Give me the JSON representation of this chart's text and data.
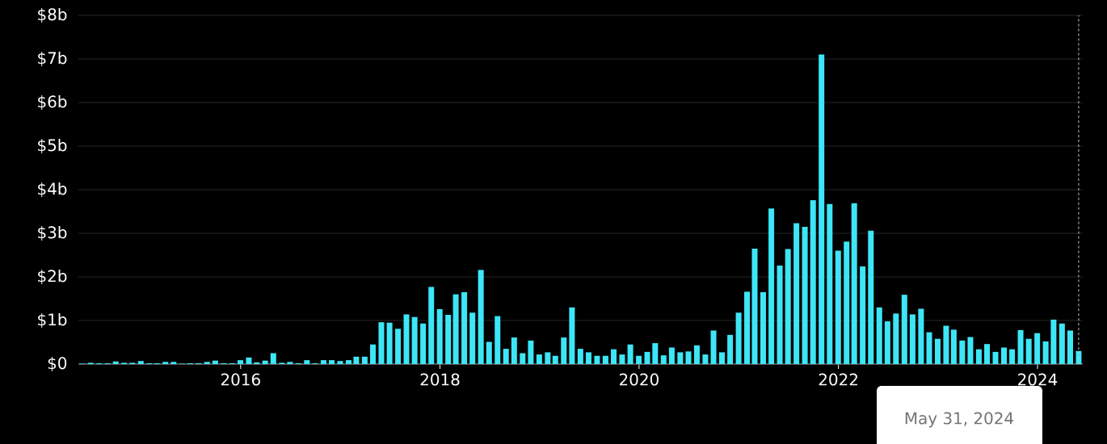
{
  "chart_data": {
    "type": "bar",
    "x": [
      "2014-05-31",
      "2014-06-30",
      "2014-07-31",
      "2014-08-31",
      "2014-09-30",
      "2014-10-31",
      "2014-11-30",
      "2014-12-31",
      "2015-01-31",
      "2015-02-28",
      "2015-03-31",
      "2015-04-30",
      "2015-05-31",
      "2015-06-30",
      "2015-07-31",
      "2015-08-31",
      "2015-09-30",
      "2015-10-31",
      "2015-11-30",
      "2015-12-31",
      "2016-01-31",
      "2016-02-29",
      "2016-03-31",
      "2016-04-30",
      "2016-05-31",
      "2016-06-30",
      "2016-07-31",
      "2016-08-31",
      "2016-09-30",
      "2016-10-31",
      "2016-11-30",
      "2016-12-31",
      "2017-01-31",
      "2017-02-28",
      "2017-03-31",
      "2017-04-30",
      "2017-05-31",
      "2017-06-30",
      "2017-07-31",
      "2017-08-31",
      "2017-09-30",
      "2017-10-31",
      "2017-11-30",
      "2017-12-31",
      "2018-01-31",
      "2018-02-28",
      "2018-03-31",
      "2018-04-30",
      "2018-05-31",
      "2018-06-30",
      "2018-07-31",
      "2018-08-31",
      "2018-09-30",
      "2018-10-31",
      "2018-11-30",
      "2018-12-31",
      "2019-01-31",
      "2019-02-28",
      "2019-03-31",
      "2019-04-30",
      "2019-05-31",
      "2019-06-30",
      "2019-07-31",
      "2019-08-31",
      "2019-09-30",
      "2019-10-31",
      "2019-11-30",
      "2019-12-31",
      "2020-01-31",
      "2020-02-29",
      "2020-03-31",
      "2020-04-30",
      "2020-05-31",
      "2020-06-30",
      "2020-07-31",
      "2020-08-31",
      "2020-09-30",
      "2020-10-31",
      "2020-11-30",
      "2020-12-31",
      "2021-01-31",
      "2021-02-28",
      "2021-03-31",
      "2021-04-30",
      "2021-05-31",
      "2021-06-30",
      "2021-07-31",
      "2021-08-31",
      "2021-09-30",
      "2021-10-31",
      "2021-11-30",
      "2021-12-31",
      "2022-01-31",
      "2022-02-28",
      "2022-03-31",
      "2022-04-30",
      "2022-05-31",
      "2022-06-30",
      "2022-07-31",
      "2022-08-31",
      "2022-09-30",
      "2022-10-31",
      "2022-11-30",
      "2022-12-31",
      "2023-01-31",
      "2023-02-28",
      "2023-03-31",
      "2023-04-30",
      "2023-05-31",
      "2023-06-30",
      "2023-07-31",
      "2023-08-31",
      "2023-09-30",
      "2023-10-31",
      "2023-11-30",
      "2023-12-31",
      "2024-01-31",
      "2024-02-29",
      "2024-03-31",
      "2024-04-30",
      "2024-05-31"
    ],
    "values": [
      0.01,
      0.03,
      0.02,
      0.02,
      0.06,
      0.03,
      0.03,
      0.07,
      0.02,
      0.02,
      0.05,
      0.05,
      0.01,
      0.02,
      0.02,
      0.05,
      0.08,
      0.02,
      0.02,
      0.09,
      0.15,
      0.04,
      0.08,
      0.25,
      0.03,
      0.05,
      0.02,
      0.09,
      0.02,
      0.09,
      0.09,
      0.07,
      0.09,
      0.17,
      0.17,
      0.45,
      0.96,
      0.95,
      0.81,
      1.14,
      1.08,
      0.93,
      1.77,
      1.26,
      1.13,
      1.6,
      1.65,
      1.18,
      2.16,
      0.51,
      1.1,
      0.35,
      0.61,
      0.25,
      0.54,
      0.22,
      0.27,
      0.19,
      0.61,
      1.3,
      0.35,
      0.27,
      0.19,
      0.19,
      0.34,
      0.22,
      0.45,
      0.19,
      0.28,
      0.48,
      0.2,
      0.38,
      0.27,
      0.29,
      0.43,
      0.22,
      0.77,
      0.27,
      0.67,
      1.18,
      1.66,
      2.65,
      1.65,
      3.57,
      2.26,
      2.64,
      3.23,
      3.15,
      3.76,
      7.1,
      3.67,
      2.6,
      2.81,
      3.69,
      2.24,
      3.06,
      1.3,
      0.98,
      1.16,
      1.59,
      1.14,
      1.27,
      0.73,
      0.58,
      0.88,
      0.79,
      0.54,
      0.62,
      0.34,
      0.46,
      0.28,
      0.38,
      0.34,
      0.78,
      0.58,
      0.71,
      0.52,
      1.02,
      0.93,
      0.77,
      0.3
    ],
    "color": "#3de6f6",
    "xlim": [
      "2014-05-16",
      "2024-06-15"
    ],
    "ylim": [
      0,
      8
    ],
    "xticks": [
      {
        "value": "2016-01-01",
        "label": "2016"
      },
      {
        "value": "2018-01-01",
        "label": "2018"
      },
      {
        "value": "2020-01-01",
        "label": "2020"
      },
      {
        "value": "2022-01-01",
        "label": "2022"
      },
      {
        "value": "2024-01-01",
        "label": "2024"
      }
    ],
    "yticks": [
      {
        "value": 0,
        "label": "$0"
      },
      {
        "value": 1,
        "label": "$1b"
      },
      {
        "value": 2,
        "label": "$2b"
      },
      {
        "value": 3,
        "label": "$3b"
      },
      {
        "value": 4,
        "label": "$4b"
      },
      {
        "value": 5,
        "label": "$5b"
      },
      {
        "value": 6,
        "label": "$6b"
      },
      {
        "value": 7,
        "label": "$7b"
      },
      {
        "value": 8,
        "label": "$8b"
      }
    ],
    "grid": "y",
    "ref_lines": [
      {
        "axis": "x",
        "value": "2024-05-31",
        "color": "#c8c8d0",
        "line_style": "dashed"
      }
    ],
    "annotations": [
      "May 31, 2024"
    ]
  }
}
